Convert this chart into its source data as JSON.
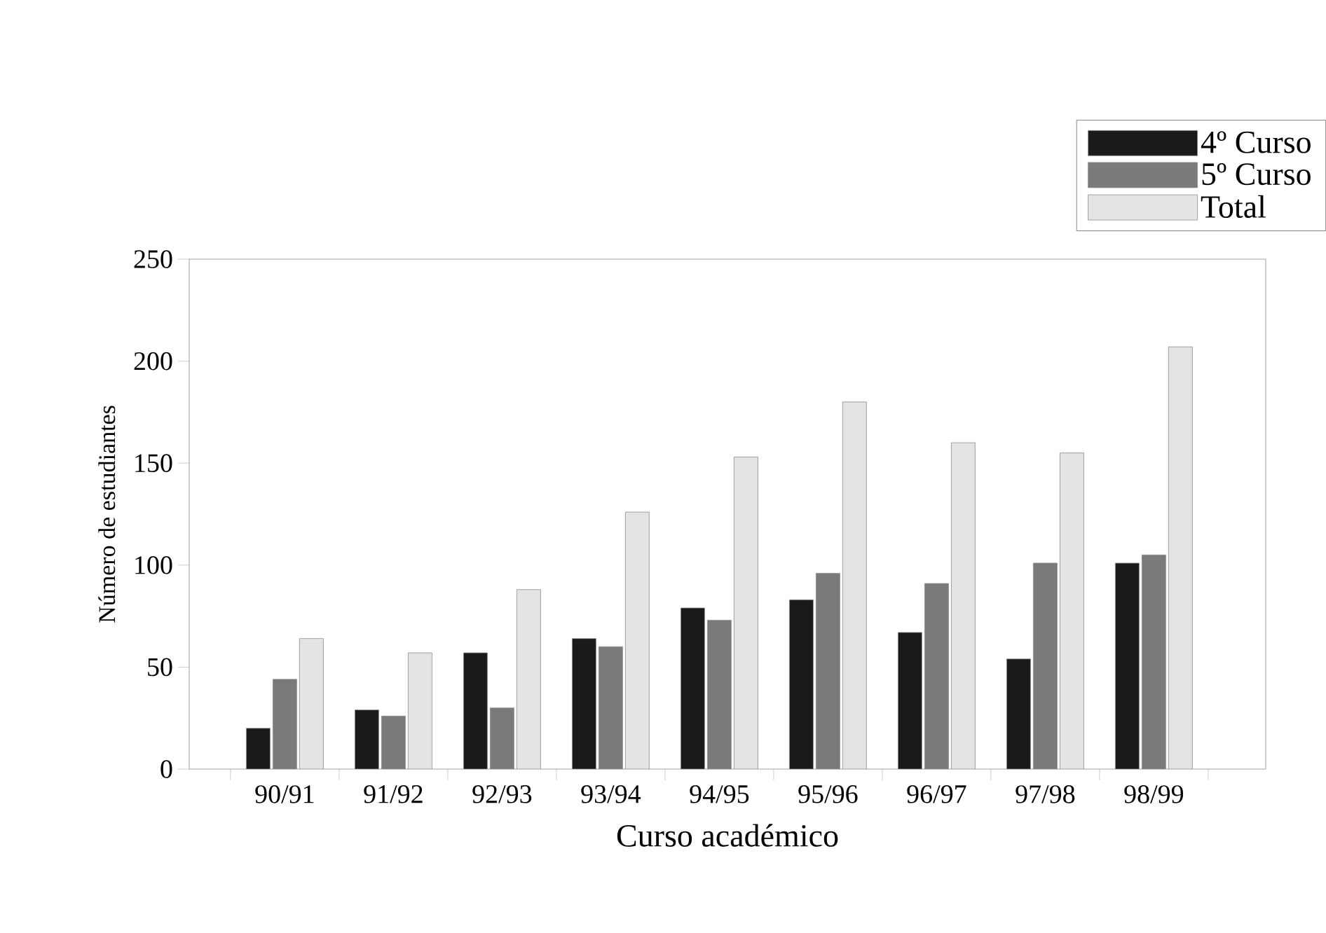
{
  "chart_data": {
    "type": "bar",
    "xlabel": "Curso académico",
    "ylabel": "Número de estudiantes",
    "categories": [
      "90/91",
      "91/92",
      "92/93",
      "93/94",
      "94/95",
      "95/96",
      "96/97",
      "97/98",
      "98/99"
    ],
    "series": [
      {
        "name": "4º Curso",
        "color": "#1a1a1a",
        "values": [
          20,
          29,
          57,
          64,
          79,
          83,
          67,
          54,
          101
        ]
      },
      {
        "name": "5º Curso",
        "color": "#7a7a7a",
        "values": [
          44,
          26,
          30,
          60,
          73,
          96,
          91,
          101,
          105
        ]
      },
      {
        "name": "Total",
        "color": "#e4e4e4",
        "values": [
          64,
          57,
          88,
          126,
          153,
          180,
          160,
          155,
          207
        ]
      }
    ],
    "ylim": [
      0,
      250
    ],
    "yticks": [
      0,
      50,
      100,
      150,
      200,
      250
    ],
    "legend": "top right",
    "grid": false
  }
}
